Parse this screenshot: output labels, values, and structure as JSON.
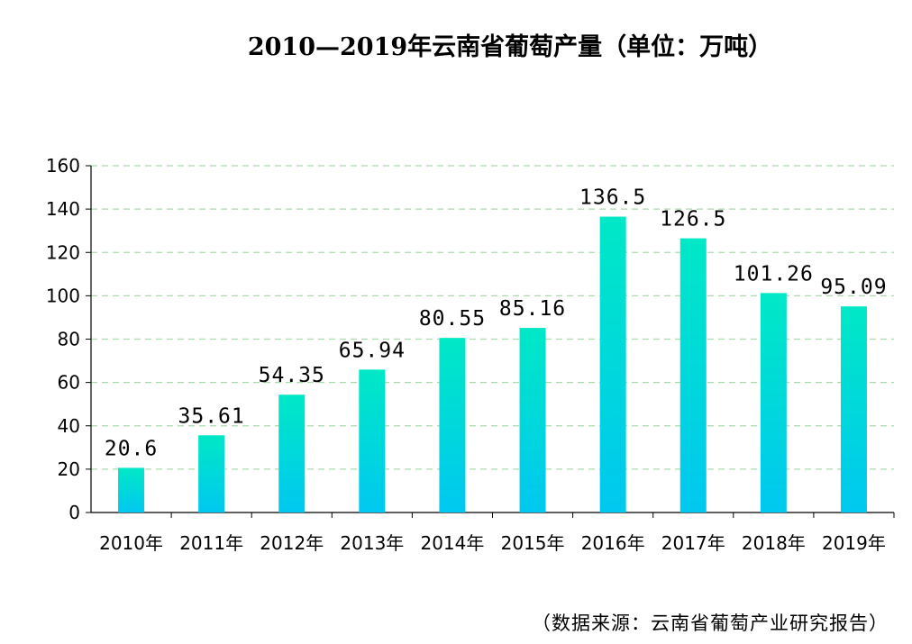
{
  "chart_data": {
    "type": "bar",
    "title": "2010—2019年云南省葡萄产量（单位：万吨）",
    "categories": [
      "2010年",
      "2011年",
      "2012年",
      "2013年",
      "2014年",
      "2015年",
      "2016年",
      "2017年",
      "2018年",
      "2019年"
    ],
    "values": [
      20.6,
      35.61,
      54.35,
      65.94,
      80.55,
      85.16,
      136.5,
      126.5,
      101.26,
      95.09
    ],
    "value_labels": [
      "20.6",
      "35.61",
      "54.35",
      "65.94",
      "80.55",
      "85.16",
      "136.5",
      "126.5",
      "101.26",
      "95.09"
    ],
    "yticks": [
      0,
      20,
      40,
      60,
      80,
      100,
      120,
      140,
      160
    ],
    "ylim": [
      0,
      160
    ],
    "xlabel": "",
    "ylabel": "",
    "grid": true,
    "colors": {
      "bar_top": "#00E8C6",
      "bar_bottom": "#00C8F0",
      "grid": "#A8DDA8",
      "axis": "#000000"
    }
  },
  "source_note": "（数据来源：云南省葡萄产业研究报告）"
}
